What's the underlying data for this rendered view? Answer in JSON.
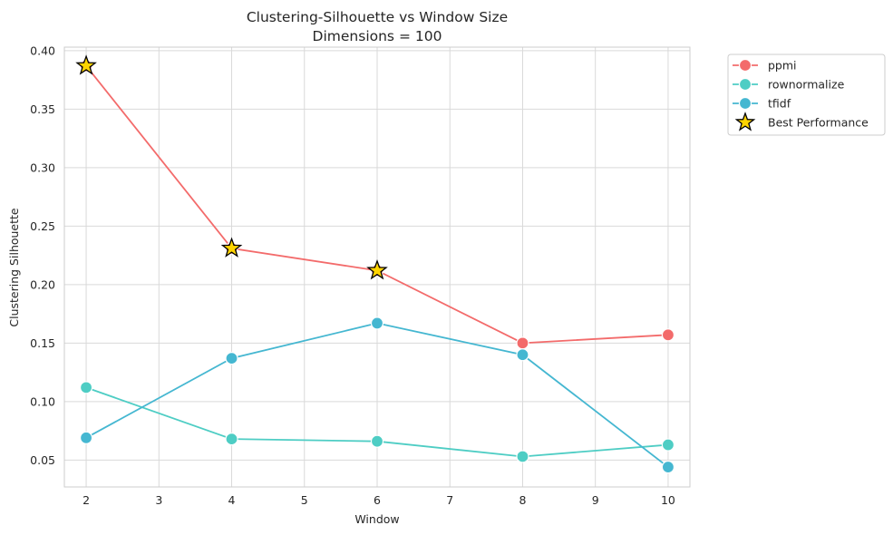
{
  "chart_data": {
    "type": "line",
    "title": "Clustering-Silhouette vs Window Size",
    "subtitle": "Dimensions = 100",
    "xlabel": "Window",
    "ylabel": "Clustering Silhouette",
    "xlim": [
      1.7,
      10.3
    ],
    "ylim": [
      0.027,
      0.403
    ],
    "xticks": [
      2,
      3,
      4,
      5,
      6,
      7,
      8,
      9,
      10
    ],
    "yticks": [
      0.05,
      0.1,
      0.15,
      0.2,
      0.25,
      0.3,
      0.35,
      0.4
    ],
    "ytick_labels": [
      "0.05",
      "0.10",
      "0.15",
      "0.20",
      "0.25",
      "0.30",
      "0.35",
      "0.40"
    ],
    "grid": true,
    "legend_placement": "outside-top-right",
    "x": [
      2,
      4,
      6,
      8,
      10
    ],
    "series": [
      {
        "name": "ppmi",
        "color": "#f36b6b",
        "values": [
          0.387,
          0.231,
          0.212,
          0.15,
          0.157
        ]
      },
      {
        "name": "rownormalize",
        "color": "#4ecdc4",
        "values": [
          0.112,
          0.068,
          0.066,
          0.053,
          0.063
        ]
      },
      {
        "name": "tfidf",
        "color": "#45b7d1",
        "values": [
          0.069,
          0.137,
          0.167,
          0.14,
          0.044
        ]
      }
    ],
    "best_performance": {
      "name": "Best Performance",
      "color": "#ffd400",
      "x": [
        2,
        4,
        6
      ],
      "y": [
        0.387,
        0.231,
        0.212
      ]
    }
  }
}
